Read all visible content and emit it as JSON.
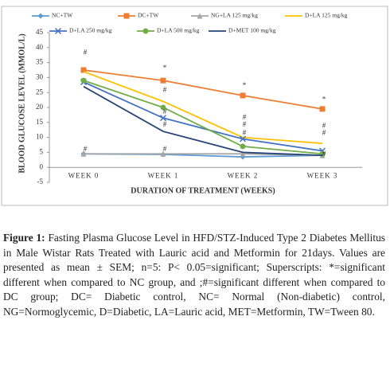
{
  "chart_data": {
    "type": "line",
    "y_label": "BLOOD GLUCOSE LEVEL (MMOL/L)",
    "x_label": "DURATION OF TREATMENT (WEEKS)",
    "categories": [
      "WEEK 0",
      "WEEK 1",
      "WEEK 2",
      "WEEK 3"
    ],
    "ylim": [
      -5,
      45
    ],
    "yticks": [
      -5,
      0,
      5,
      10,
      15,
      20,
      25,
      30,
      35,
      40,
      45
    ],
    "series": [
      {
        "name": "NC+TW",
        "color": "#5b9bd5",
        "marker": "diamond",
        "values": [
          4.5,
          4.3,
          3.5,
          4.0
        ]
      },
      {
        "name": "DC+TW",
        "color": "#ed7d31",
        "marker": "square",
        "values": [
          32.5,
          29,
          24,
          19.5
        ]
      },
      {
        "name": "NG+LA 125 mg/kg",
        "color": "#a5a5a5",
        "marker": "triangle",
        "values": [
          4.5,
          4.5,
          4.5,
          4.0
        ]
      },
      {
        "name": "D+LA 125 mg/kg",
        "color": "#ffc000",
        "marker": "none",
        "values": [
          32,
          22,
          10,
          8
        ]
      },
      {
        "name": "D+LA 250 mg/kg",
        "color": "#4472c4",
        "marker": "cross",
        "values": [
          28.5,
          16.5,
          9.5,
          5.5
        ]
      },
      {
        "name": "D+LA 500 mg/kg",
        "color": "#70ad47",
        "marker": "circle",
        "values": [
          29,
          20,
          7,
          4.5
        ]
      },
      {
        "name": "D+MET 100 mg/kg",
        "color": "#264478",
        "marker": "none",
        "values": [
          27,
          12,
          5,
          4
        ]
      }
    ],
    "annotations": [
      {
        "text": "#",
        "x": "WEEK 0",
        "y": 38.3
      },
      {
        "text": "#",
        "x": "WEEK 0",
        "y": 5.9
      },
      {
        "text": "*",
        "x": "WEEK 1",
        "y": 33
      },
      {
        "text": "#",
        "x": "WEEK 1",
        "y": 25.8
      },
      {
        "text": "#",
        "x": "WEEK 1",
        "y": 18.4
      },
      {
        "text": "#",
        "x": "WEEK 1",
        "y": 14.1
      },
      {
        "text": "#",
        "x": "WEEK 1",
        "y": 5.9
      },
      {
        "text": "*",
        "x": "WEEK 2",
        "y": 27.2
      },
      {
        "text": "#",
        "x": "WEEK 2",
        "y": 16.5
      },
      {
        "text": "#",
        "x": "WEEK 2",
        "y": 14.1
      },
      {
        "text": "#",
        "x": "WEEK 2",
        "y": 11.4
      },
      {
        "text": "*",
        "x": "WEEK 3",
        "y": 22.6
      },
      {
        "text": "#",
        "x": "WEEK 3",
        "y": 13.8
      },
      {
        "text": "#",
        "x": "WEEK 3",
        "y": 11.4
      },
      {
        "text": "#",
        "x": "WEEK 3",
        "y": 4.3
      }
    ]
  },
  "caption": {
    "label": "Figure 1:",
    "text": "Fasting Plasma Glucose Level in HFD/STZ-Induced Type 2 Diabetes Mellitus in Male Wistar Rats Treated with Lauric acid and Metformin for 21days. Values are presented as mean ± SEM; n=5: P< 0.05=significant; Superscripts: *=significant different when compared to NC group, and ;#=significant different when compared to DC group; DC= Diabetic control, NC= Normal (Non-diabetic) control, NG=Normoglycemic, D=Diabetic, LA=Lauric acid, MET=Metformin, TW=Tween 80."
  }
}
